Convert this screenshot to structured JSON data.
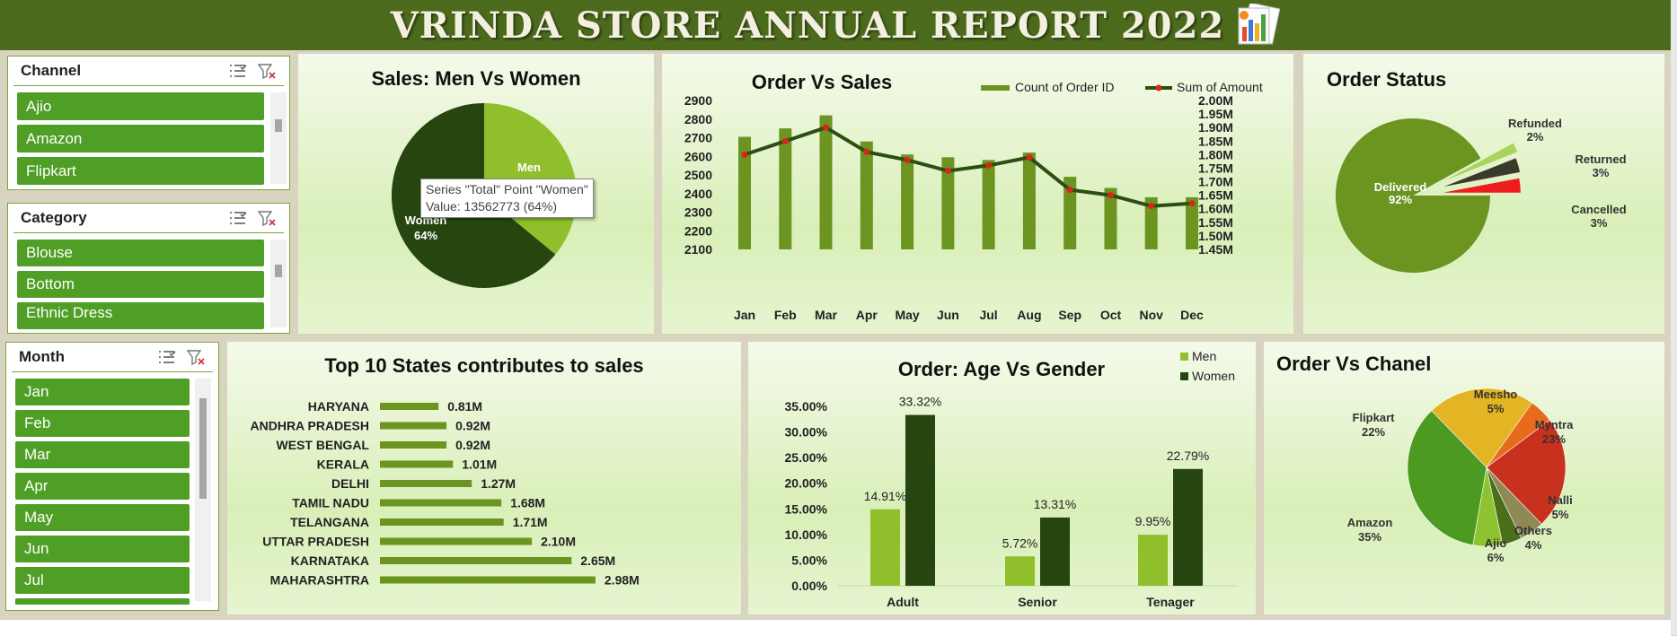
{
  "header": {
    "title": "VRINDA STORE ANNUAL REPORT 2022",
    "icon": "chart-report-icon"
  },
  "slicers": {
    "channel": {
      "title": "Channel",
      "items": [
        "Ajio",
        "Amazon",
        "Flipkart"
      ],
      "icons": [
        "multi-select-icon",
        "clear-filter-icon"
      ]
    },
    "category": {
      "title": "Category",
      "items": [
        "Blouse",
        "Bottom",
        "Ethnic Dress"
      ],
      "icons": [
        "multi-select-icon",
        "clear-filter-icon"
      ]
    },
    "month": {
      "title": "Month",
      "items": [
        "Jan",
        "Feb",
        "Mar",
        "Apr",
        "May",
        "Jun",
        "Jul"
      ],
      "icons": [
        "multi-select-icon",
        "clear-filter-icon"
      ]
    }
  },
  "tooltip": {
    "line1": "Series \"Total\" Point \"Women\"",
    "line2": "Value: 13562773 (64%)"
  },
  "colors": {
    "header": "#4c6a1c",
    "slicer_item": "#4f9e25",
    "men": "#8fc02c",
    "women": "#26450f",
    "bar": "#6b9420",
    "line": "#2d4e12",
    "marker": "#d9251c"
  },
  "chart_data": [
    {
      "id": "sales_men_women",
      "type": "pie",
      "title": "Sales: Men Vs Women",
      "labels": [
        "Men",
        "Women"
      ],
      "values": [
        36,
        64
      ],
      "value_labels": [
        "",
        "64%"
      ],
      "colors": [
        "#8fc02c",
        "#26450f"
      ]
    },
    {
      "id": "order_vs_sales",
      "type": "bar",
      "title": "Order Vs Sales",
      "categories": [
        "Jan",
        "Feb",
        "Mar",
        "Apr",
        "May",
        "Jun",
        "Jul",
        "Aug",
        "Sep",
        "Oct",
        "Nov",
        "Dec"
      ],
      "series": [
        {
          "name": "Count of Order ID",
          "type": "bar",
          "axis": "left",
          "values": [
            2705,
            2750,
            2820,
            2680,
            2610,
            2595,
            2580,
            2620,
            2490,
            2430,
            2380,
            2380
          ]
        },
        {
          "name": "Sum of Amount",
          "type": "line",
          "axis": "right",
          "values": [
            1.8,
            1.85,
            1.9,
            1.81,
            1.78,
            1.74,
            1.76,
            1.79,
            1.67,
            1.65,
            1.61,
            1.62
          ]
        }
      ],
      "ylim": [
        2100,
        2900
      ],
      "y_ticks": [
        "2900",
        "2800",
        "2700",
        "2600",
        "2500",
        "2400",
        "2300",
        "2200",
        "2100"
      ],
      "y2lim": [
        1.45,
        2.0
      ],
      "y2_ticks": [
        "2.00M",
        "1.95M",
        "1.90M",
        "1.85M",
        "1.80M",
        "1.75M",
        "1.70M",
        "1.65M",
        "1.60M",
        "1.55M",
        "1.50M",
        "1.45M"
      ],
      "legend": "top-right"
    },
    {
      "id": "order_status",
      "type": "pie",
      "title": "Order Status",
      "labels": [
        "Delivered",
        "Refunded",
        "Returned",
        "Cancelled"
      ],
      "values": [
        92,
        2,
        3,
        3
      ],
      "value_labels": [
        "92%",
        "2%",
        "3%",
        "3%"
      ],
      "colors": [
        "#6b9420",
        "#a8d45a",
        "#3a3a2a",
        "#ee1d1d"
      ]
    },
    {
      "id": "top_states",
      "type": "bar",
      "orientation": "horizontal",
      "title": "Top 10 States contributes to sales",
      "categories": [
        "HARYANA",
        "ANDHRA PRADESH",
        "WEST BENGAL",
        "KERALA",
        "DELHI",
        "TAMIL NADU",
        "TELANGANA",
        "UTTAR PRADESH",
        "KARNATAKA",
        "MAHARASHTRA"
      ],
      "values": [
        0.81,
        0.92,
        0.92,
        1.01,
        1.27,
        1.68,
        1.71,
        2.1,
        2.65,
        2.98
      ],
      "value_labels": [
        "0.81M",
        "0.92M",
        "0.92M",
        "1.01M",
        "1.27M",
        "1.68M",
        "1.71M",
        "2.10M",
        "2.65M",
        "2.98M"
      ]
    },
    {
      "id": "age_gender",
      "type": "bar",
      "title": "Order: Age Vs Gender",
      "categories": [
        "Adult",
        "Senior",
        "Tenager"
      ],
      "series": [
        {
          "name": "Men",
          "values": [
            14.91,
            5.72,
            9.95
          ],
          "value_labels": [
            "14.91%",
            "5.72%",
            "9.95%"
          ]
        },
        {
          "name": "Women",
          "values": [
            33.32,
            13.31,
            22.79
          ],
          "value_labels": [
            "33.32%",
            "13.31%",
            "22.79%"
          ]
        }
      ],
      "ylim": [
        0,
        35
      ],
      "y_ticks": [
        "35.00%",
        "30.00%",
        "25.00%",
        "20.00%",
        "15.00%",
        "10.00%",
        "5.00%",
        "0.00%"
      ],
      "legend": "top-right"
    },
    {
      "id": "order_channel",
      "type": "pie",
      "title": "Order Vs Chanel",
      "labels": [
        "Amazon",
        "Flipkart",
        "Meesho",
        "Myntra",
        "Nalli",
        "Others",
        "Ajio"
      ],
      "values": [
        35,
        22,
        5,
        23,
        5,
        4,
        6
      ],
      "value_labels": [
        "35%",
        "22%",
        "5%",
        "23%",
        "5%",
        "4%",
        "6%"
      ],
      "colors": [
        "#4d9a22",
        "#e3b423",
        "#e86a1c",
        "#c8311d",
        "#8f8a55",
        "#4a6e1a",
        "#8dc330"
      ]
    }
  ]
}
